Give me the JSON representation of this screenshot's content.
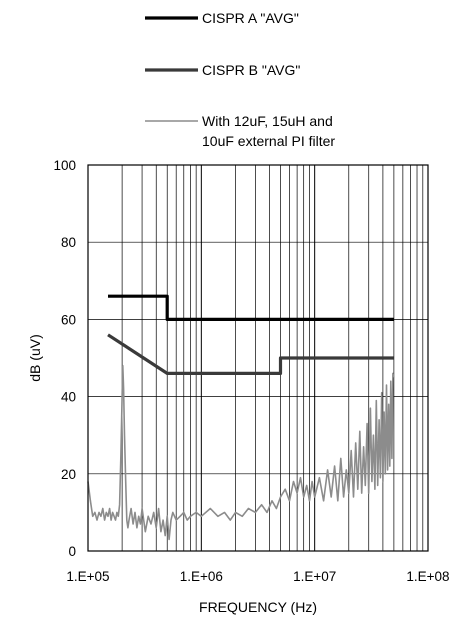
{
  "chart_data": {
    "type": "line",
    "xlabel": "FREQUENCY (Hz)",
    "ylabel": "dB (uV)",
    "x_scale": "log",
    "xlim": [
      100000,
      100000000
    ],
    "ylim": [
      0,
      100
    ],
    "x_ticks": [
      {
        "value": 100000,
        "label": "1.E+05"
      },
      {
        "value": 1000000,
        "label": "1.E+06"
      },
      {
        "value": 10000000,
        "label": "1.E+07"
      },
      {
        "value": 100000000,
        "label": "1.E+08"
      }
    ],
    "y_ticks": [
      0,
      20,
      40,
      60,
      80,
      100
    ],
    "grid": true,
    "legend": {
      "position": "top",
      "entries": [
        {
          "label_lines": [
            "CISPR A \"AVG\""
          ],
          "color": "#000000"
        },
        {
          "label_lines": [
            "CISPR B \"AVG\""
          ],
          "color": "#3a3a3a"
        },
        {
          "label_lines": [
            "With 12uF, 15uH and",
            "10uF external PI filter"
          ],
          "color": "#8c8c8c"
        }
      ]
    },
    "series": [
      {
        "color": "#000000",
        "points": [
          [
            150000,
            66
          ],
          [
            500000,
            66
          ],
          [
            500000,
            60
          ],
          [
            50000000,
            60
          ]
        ]
      },
      {
        "color": "#3a3a3a",
        "points": [
          [
            150000,
            56
          ],
          [
            500000,
            46
          ],
          [
            5000000,
            46
          ],
          [
            5000000,
            50
          ],
          [
            50000000,
            50
          ]
        ]
      },
      {
        "color": "#8c8c8c",
        "points": [
          [
            100000,
            18
          ],
          [
            105000,
            13
          ],
          [
            110000,
            9
          ],
          [
            115000,
            10
          ],
          [
            120000,
            8
          ],
          [
            125000,
            10
          ],
          [
            130000,
            9
          ],
          [
            135000,
            11
          ],
          [
            140000,
            8
          ],
          [
            145000,
            10
          ],
          [
            150000,
            9
          ],
          [
            155000,
            11
          ],
          [
            160000,
            8
          ],
          [
            165000,
            10
          ],
          [
            170000,
            9
          ],
          [
            175000,
            8
          ],
          [
            180000,
            10
          ],
          [
            185000,
            9
          ],
          [
            190000,
            12
          ],
          [
            195000,
            25
          ],
          [
            200000,
            40
          ],
          [
            203000,
            48
          ],
          [
            206000,
            42
          ],
          [
            210000,
            30
          ],
          [
            215000,
            18
          ],
          [
            220000,
            8
          ],
          [
            225000,
            6
          ],
          [
            230000,
            8
          ],
          [
            240000,
            11
          ],
          [
            250000,
            7
          ],
          [
            260000,
            10
          ],
          [
            270000,
            6
          ],
          [
            280000,
            9
          ],
          [
            290000,
            7
          ],
          [
            300000,
            11
          ],
          [
            320000,
            5
          ],
          [
            340000,
            9
          ],
          [
            360000,
            7
          ],
          [
            380000,
            10
          ],
          [
            400000,
            6
          ],
          [
            420000,
            11
          ],
          [
            440000,
            5
          ],
          [
            460000,
            8
          ],
          [
            480000,
            4
          ],
          [
            500000,
            9
          ],
          [
            520000,
            3
          ],
          [
            540000,
            8
          ],
          [
            560000,
            10
          ],
          [
            600000,
            8
          ],
          [
            650000,
            9
          ],
          [
            700000,
            10
          ],
          [
            750000,
            8
          ],
          [
            800000,
            9
          ],
          [
            900000,
            10
          ],
          [
            1000000,
            9
          ],
          [
            1200000,
            11
          ],
          [
            1400000,
            9
          ],
          [
            1600000,
            10
          ],
          [
            1800000,
            8
          ],
          [
            2000000,
            10
          ],
          [
            2300000,
            9
          ],
          [
            2600000,
            11
          ],
          [
            3000000,
            10
          ],
          [
            3400000,
            12
          ],
          [
            3800000,
            10
          ],
          [
            4200000,
            13
          ],
          [
            4600000,
            11
          ],
          [
            5000000,
            14
          ],
          [
            5500000,
            16
          ],
          [
            6000000,
            13
          ],
          [
            6500000,
            18
          ],
          [
            7000000,
            15
          ],
          [
            7500000,
            19
          ],
          [
            8000000,
            14
          ],
          [
            8500000,
            17
          ],
          [
            9000000,
            13
          ],
          [
            9500000,
            18
          ],
          [
            10000000,
            14
          ],
          [
            11000000,
            19
          ],
          [
            12000000,
            13
          ],
          [
            13000000,
            21
          ],
          [
            14000000,
            14
          ],
          [
            15000000,
            22
          ],
          [
            16000000,
            13
          ],
          [
            17000000,
            24
          ],
          [
            18000000,
            14
          ],
          [
            19000000,
            21
          ],
          [
            20000000,
            15
          ],
          [
            21000000,
            26
          ],
          [
            22000000,
            14
          ],
          [
            23000000,
            28
          ],
          [
            24000000,
            16
          ],
          [
            25000000,
            31
          ],
          [
            26000000,
            15
          ],
          [
            27000000,
            27
          ],
          [
            28000000,
            17
          ],
          [
            29000000,
            33
          ],
          [
            30000000,
            15
          ],
          [
            31000000,
            37
          ],
          [
            32000000,
            18
          ],
          [
            33000000,
            30
          ],
          [
            34000000,
            16
          ],
          [
            35000000,
            39
          ],
          [
            36000000,
            17
          ],
          [
            37000000,
            34
          ],
          [
            38000000,
            19
          ],
          [
            39000000,
            41
          ],
          [
            40000000,
            18
          ],
          [
            41000000,
            36
          ],
          [
            42000000,
            20
          ],
          [
            43000000,
            43
          ],
          [
            44000000,
            21
          ],
          [
            45000000,
            38
          ],
          [
            46000000,
            22
          ],
          [
            47000000,
            44
          ],
          [
            48000000,
            24
          ],
          [
            49000000,
            46
          ],
          [
            50000000,
            45
          ]
        ]
      }
    ]
  }
}
